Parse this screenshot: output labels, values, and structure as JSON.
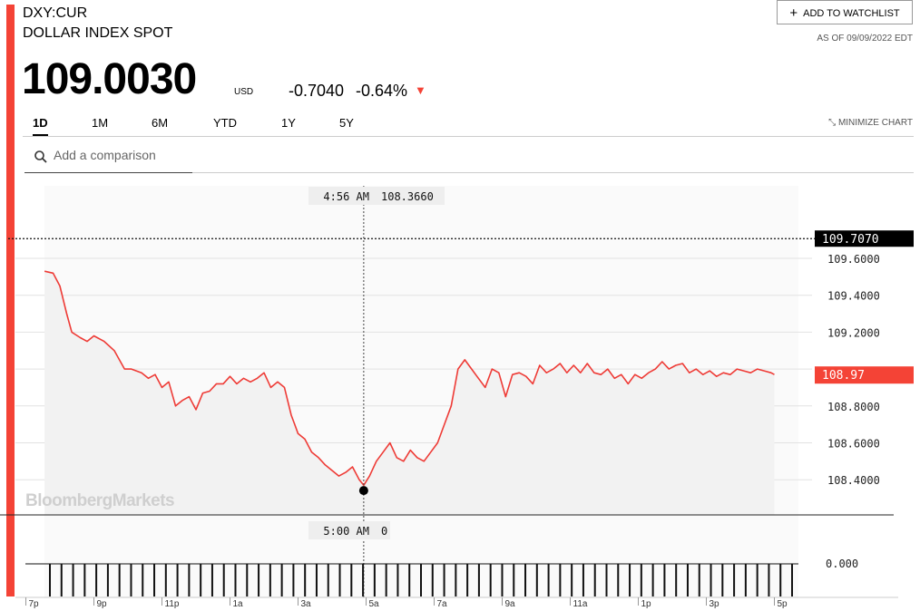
{
  "header": {
    "ticker": "DXY:CUR",
    "name": "DOLLAR INDEX SPOT",
    "price": "109.0030",
    "unit": "USD",
    "change": "-0.7040",
    "change_pct": "-0.64%",
    "watchlist_label": "ADD TO WATCHLIST",
    "as_of": "AS OF 09/09/2022 EDT"
  },
  "tabs": [
    {
      "label": "1D",
      "active": true
    },
    {
      "label": "1M",
      "active": false
    },
    {
      "label": "6M",
      "active": false
    },
    {
      "label": "YTD",
      "active": false
    },
    {
      "label": "1Y",
      "active": false
    },
    {
      "label": "5Y",
      "active": false
    }
  ],
  "minimize_label": "MINIMIZE CHART",
  "search": {
    "placeholder": "Add a comparison"
  },
  "watermark": "BloombergMarkets",
  "colors": {
    "accent": "#f44336",
    "line": "#ee3b36",
    "fill": "#f2f2f2"
  },
  "chart_data": {
    "type": "line",
    "ylim": [
      108.2,
      109.8
    ],
    "y_ticks": [
      "109.6000",
      "109.4000",
      "109.2000",
      "108.8000",
      "108.6000",
      "108.4000"
    ],
    "x_ticks": [
      "7p",
      "9p",
      "11p",
      "1a",
      "3a",
      "5a",
      "7a",
      "9a",
      "11a",
      "1p",
      "3p",
      "5p"
    ],
    "x_tick_hours": [
      0,
      2,
      4,
      6,
      8,
      10,
      12,
      14,
      16,
      18,
      20,
      22
    ],
    "reference_label": "109.7070",
    "reference_value": 109.707,
    "last_label": "108.97",
    "last_value": 108.97,
    "crosshair": {
      "price_time": "4:56 AM",
      "price_value": "108.3660",
      "volume_time": "5:00 AM",
      "volume_value": "0",
      "hour": 9.93,
      "value": 108.366
    },
    "volume_label": "0.000",
    "volume_bar_count": 65,
    "series": [
      {
        "x": [
          0.55,
          0.8,
          1.0,
          1.2,
          1.35,
          1.6,
          1.8,
          2.0,
          2.3,
          2.6,
          2.9,
          3.1,
          3.4,
          3.6,
          3.8,
          4.0,
          4.2,
          4.4,
          4.6,
          4.8,
          5.0,
          5.2,
          5.4,
          5.6,
          5.8,
          6.0,
          6.2,
          6.4,
          6.6,
          6.8,
          7.0,
          7.2,
          7.4,
          7.6,
          7.8,
          7.9,
          8.0,
          8.2,
          8.4,
          8.6,
          8.8,
          9.0,
          9.2,
          9.4,
          9.6,
          9.8,
          9.93,
          10.1,
          10.3,
          10.5,
          10.7,
          10.9,
          11.1,
          11.3,
          11.5,
          11.7,
          11.9,
          12.1,
          12.3,
          12.5,
          12.7,
          12.9,
          13.1,
          13.3,
          13.5,
          13.7,
          13.9,
          14.1,
          14.3,
          14.5,
          14.7,
          14.9,
          15.1,
          15.3,
          15.5,
          15.7,
          15.9,
          16.1,
          16.3,
          16.5,
          16.7,
          16.9,
          17.1,
          17.3,
          17.5,
          17.7,
          17.9,
          18.1,
          18.3,
          18.5,
          18.7,
          18.9,
          19.1,
          19.3,
          19.5,
          19.7,
          19.9,
          20.1,
          20.3,
          20.5,
          20.7,
          20.9,
          21.1,
          21.3,
          21.5,
          21.7,
          21.9,
          22.0
        ],
        "y": [
          109.53,
          109.52,
          109.45,
          109.3,
          109.2,
          109.17,
          109.15,
          109.18,
          109.15,
          109.1,
          109.0,
          109.0,
          108.98,
          108.95,
          108.97,
          108.9,
          108.93,
          108.8,
          108.83,
          108.85,
          108.78,
          108.87,
          108.88,
          108.92,
          108.92,
          108.96,
          108.92,
          108.95,
          108.93,
          108.95,
          108.98,
          108.9,
          108.93,
          108.9,
          108.75,
          108.7,
          108.65,
          108.62,
          108.55,
          108.52,
          108.48,
          108.45,
          108.42,
          108.44,
          108.47,
          108.4,
          108.37,
          108.42,
          108.5,
          108.55,
          108.6,
          108.52,
          108.5,
          108.56,
          108.52,
          108.5,
          108.55,
          108.6,
          108.7,
          108.8,
          109.0,
          109.05,
          109.0,
          108.95,
          108.9,
          109.0,
          108.98,
          108.85,
          108.97,
          108.98,
          108.96,
          108.92,
          109.02,
          108.98,
          109.0,
          109.03,
          108.98,
          109.02,
          108.98,
          109.03,
          108.98,
          108.97,
          109.0,
          108.95,
          108.97,
          108.92,
          108.97,
          108.95,
          108.98,
          109.0,
          109.04,
          109.0,
          109.02,
          109.03,
          108.98,
          109.0,
          108.97,
          108.99,
          108.96,
          108.98,
          108.97,
          109.0,
          108.99,
          108.98,
          109.0,
          108.99,
          108.98,
          108.97
        ]
      }
    ]
  }
}
